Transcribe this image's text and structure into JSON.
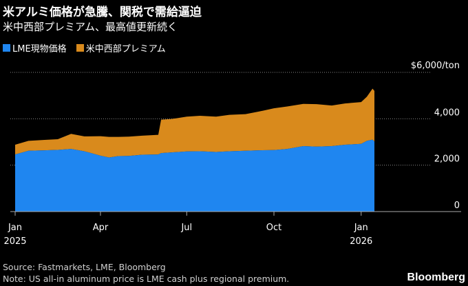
{
  "title": "米アルミ価格が急騰、関税で需給逼迫",
  "subtitle": "米中西部プレミアム、最高値更新続く",
  "legend": {
    "lme": "LME現物価格",
    "premium": "米中西部プレミアム"
  },
  "colors": {
    "lme": "#1f86f0",
    "premium": "#d98a1c",
    "background": "#000000",
    "grid": "#888888"
  },
  "footer": {
    "source": "Source: Fastmarkets, LME, Bloomberg",
    "note": "Note: US all-in aluminum price is LME cash plus regional premium."
  },
  "brand": "Bloomberg",
  "chart_data": {
    "type": "area",
    "stacked": true,
    "unit_label": "$6,000/ton",
    "yticks": [
      "0",
      "2,000",
      "4,000",
      "$6,000/ton"
    ],
    "ylim": [
      0,
      6000
    ],
    "xticks": [
      {
        "label": "Jan",
        "year": "2025",
        "date": "2025-01-01"
      },
      {
        "label": "Apr",
        "year": "",
        "date": "2025-04-01"
      },
      {
        "label": "Jul",
        "year": "",
        "date": "2025-07-01"
      },
      {
        "label": "Oct",
        "year": "",
        "date": "2025-10-01"
      },
      {
        "label": "Jan",
        "year": "2026",
        "date": "2026-01-01"
      }
    ],
    "x": [
      "2025-01-01",
      "2025-01-15",
      "2025-02-01",
      "2025-02-15",
      "2025-03-01",
      "2025-03-15",
      "2025-04-01",
      "2025-04-10",
      "2025-04-20",
      "2025-05-01",
      "2025-05-15",
      "2025-06-01",
      "2025-06-04",
      "2025-06-15",
      "2025-07-01",
      "2025-07-15",
      "2025-08-01",
      "2025-08-15",
      "2025-09-01",
      "2025-09-15",
      "2025-10-01",
      "2025-10-15",
      "2025-11-01",
      "2025-11-15",
      "2025-12-01",
      "2025-12-15",
      "2026-01-01",
      "2026-01-07",
      "2026-01-13",
      "2026-01-15"
    ],
    "series": [
      {
        "name": "LME現物価格",
        "values": [
          2460,
          2620,
          2640,
          2660,
          2700,
          2600,
          2410,
          2330,
          2390,
          2400,
          2450,
          2460,
          2520,
          2550,
          2590,
          2600,
          2570,
          2600,
          2620,
          2640,
          2650,
          2700,
          2820,
          2800,
          2820,
          2880,
          2920,
          3050,
          3100,
          3020
        ]
      },
      {
        "name": "米中西部プレミアム",
        "values": [
          420,
          430,
          450,
          460,
          650,
          640,
          840,
          890,
          830,
          830,
          820,
          850,
          1440,
          1440,
          1500,
          1530,
          1520,
          1570,
          1580,
          1670,
          1800,
          1830,
          1820,
          1830,
          1750,
          1780,
          1800,
          1900,
          2200,
          2180
        ]
      }
    ]
  }
}
